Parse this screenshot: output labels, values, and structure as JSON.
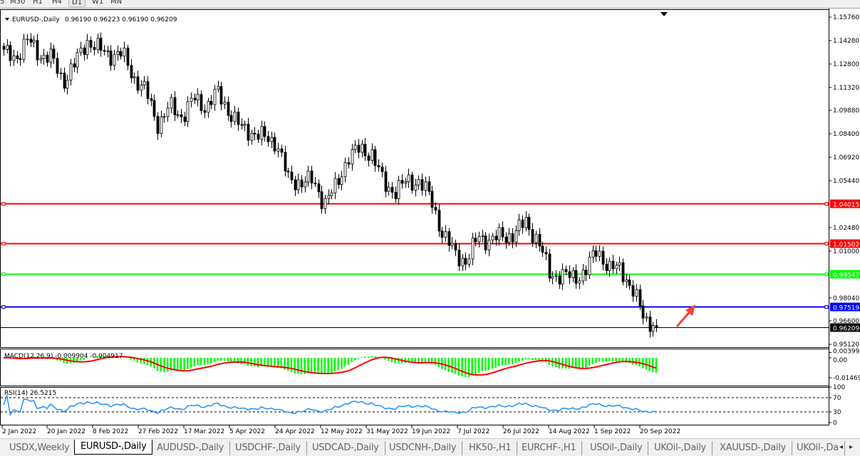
{
  "toolbar": {
    "timeframes": [
      "5",
      "M30",
      "H1",
      "H4",
      "D1",
      "W1",
      "MN"
    ],
    "active": "D1"
  },
  "header": {
    "symbol": "EURUSD-,Daily",
    "ohlc": "0.96190 0.96223 0.96190 0.96209"
  },
  "price_axis": {
    "ticks": [
      "1.15760",
      "1.14280",
      "1.12800",
      "1.11320",
      "1.09880",
      "1.08400",
      "1.06920",
      "1.05440",
      "1.02480",
      "1.01000",
      "0.98040",
      "0.96600",
      "0.95120"
    ],
    "tick_values": [
      1.1576,
      1.1428,
      1.128,
      1.1132,
      1.0988,
      1.084,
      1.0692,
      1.0544,
      1.0248,
      1.01,
      0.9804,
      0.966,
      0.9512
    ],
    "range": [
      0.9512,
      1.1576
    ]
  },
  "levels": [
    {
      "label": "1.04015",
      "value": 1.04015,
      "color": "#ff0000"
    },
    {
      "label": "1.01502",
      "value": 1.01502,
      "color": "#ff0000"
    },
    {
      "label": "0.99547",
      "value": 0.99547,
      "color": "#00ff00"
    },
    {
      "label": "0.97519",
      "value": 0.97519,
      "color": "#0000ff"
    },
    {
      "label": "0.96209",
      "value": 0.96209,
      "color": "#000000"
    }
  ],
  "chart_data": {
    "type": "candlestick",
    "closes_approx": [
      1.1347,
      1.132,
      1.143,
      1.134,
      1.132,
      1.117,
      1.128,
      1.143,
      1.137,
      1.134,
      1.134,
      1.119,
      1.11,
      1.09,
      1.101,
      1.095,
      1.106,
      1.101,
      1.11,
      1.098,
      1.087,
      1.085,
      1.081,
      1.079,
      1.054,
      1.054,
      1.054,
      1.041,
      1.05,
      1.07,
      1.074,
      1.072,
      1.052,
      1.048,
      1.054,
      1.054,
      1.043,
      1.02,
      1.009,
      1.003,
      1.02,
      1.016,
      1.02,
      1.02,
      1.029,
      1.016,
      0.996,
      0.994,
      0.994,
      0.996,
      1.012,
      0.998,
      1.0,
      0.984,
      0.968,
      0.962
    ]
  },
  "macd": {
    "label": "MACD(12,26,9) -0.009904 -0.004917",
    "ticks": [
      "0.00399",
      "0.00",
      "-0.01469"
    ],
    "tick_values": [
      0.00399,
      0,
      -0.01469
    ],
    "hist_color": "#00ff00",
    "signal_color": "#ff0000"
  },
  "rsi": {
    "label": "RSI(14) 26.5215",
    "ticks": [
      "100",
      "70",
      "30",
      "0"
    ],
    "tick_values": [
      100,
      70,
      30,
      0
    ],
    "line_color": "#1e90ff"
  },
  "time_axis": [
    "2 Jan 2022",
    "20 Jan 2022",
    "8 Feb 2022",
    "27 Feb 2022",
    "17 Mar 2022",
    "5 Apr 2022",
    "24 Apr 2022",
    "12 May 2022",
    "31 May 2022",
    "19 Jun 2022",
    "7 Jul 2022",
    "26 Jul 2022",
    "14 Aug 2022",
    "1 Sep 2022",
    "20 Sep 2022"
  ],
  "tabs": [
    "USDX,Weekly",
    "EURUSD-,Daily",
    "AUDUSD-,Daily",
    "USDCHF-,Daily",
    "USDCAD-,Daily",
    "USDCNH-,Daily",
    "HK50-,H1",
    "EURCHF-,H1",
    "USOil-,Daily",
    "UKOil-,Daily",
    "XAUUSD-,Daily",
    "UKOil-,Da"
  ],
  "active_tab": "EURUSD-,Daily"
}
